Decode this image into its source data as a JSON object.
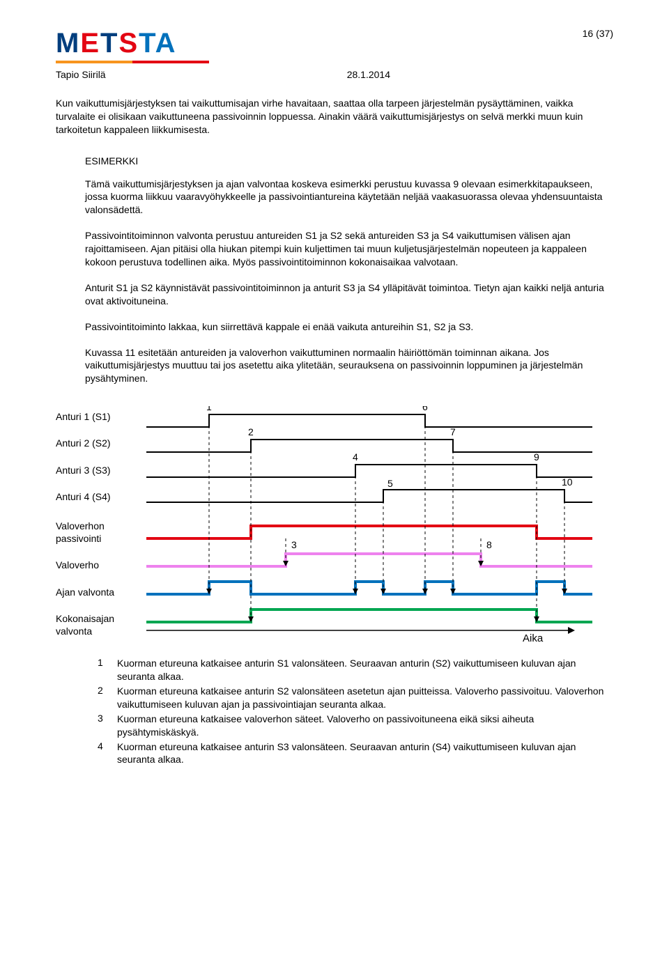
{
  "pagenum": "16 (37)",
  "logo": {
    "text": "METSTA"
  },
  "author": "Tapio Siirilä",
  "date": "28.1.2014",
  "intro_para": "Kun vaikuttumisjärjestyksen tai vaikuttumisajan virhe havaitaan, saattaa olla tarpeen järjestelmän pysäyttäminen, vaikka turvalaite ei olisikaan vaikuttuneena passivoinnin loppuessa. Ainakin väärä vaikuttumisjärjestys on selvä merkki muun kuin tarkoitetun kappaleen liikkumisesta.",
  "example_title": "ESIMERKKI",
  "example_paras": [
    "Tämä vaikuttumisjärjestyksen ja ajan valvontaa koskeva esimerkki perustuu kuvassa 9 olevaan esimerkkitapaukseen, jossa kuorma liikkuu vaaravyöhykkeelle ja passivointiantureina käytetään neljää vaakasuorassa olevaa yhdensuuntaista valonsädettä.",
    "Passivointitoiminnon valvonta perustuu antureiden S1 ja S2 sekä antureiden S3 ja S4 vaikuttumisen välisen ajan rajoittamiseen. Ajan pitäisi olla hiukan pitempi kuin kuljettimen tai muun kuljetusjärjestelmän nopeuteen ja kappaleen kokoon perustuva todellinen aika. Myös passivointitoiminnon kokonaisaikaa valvotaan.",
    "Anturit S1 ja S2 käynnistävät passivointitoiminnon ja anturit S3 ja S4 ylläpitävät toimintoa. Tietyn ajan kaikki neljä anturia ovat aktivoituneina.",
    "Passivointitoiminto lakkaa, kun siirrettävä kappale ei enää vaikuta antureihin S1, S2 ja S3.",
    "Kuvassa 11 esitetään antureiden ja valoverhon vaikuttuminen normaalin häiriöttömän toiminnan aikana. Jos vaikuttumisjärjestys muuttuu tai jos asetettu aika ylitetään, seurauksena on passivoinnin loppuminen ja järjestelmän pysähtyminen."
  ],
  "diagram": {
    "labels": [
      "Anturi 1 (S1)",
      "Anturi 2 (S2)",
      "Anturi 3 (S3)",
      "Anturi 4 (S4)",
      "Valoverhon passivointi",
      "Valoverho",
      "Ajan valvonta",
      "Kokonaisajan valvonta"
    ],
    "time_axis": "Aika",
    "numbers": [
      "1",
      "2",
      "3",
      "4",
      "5",
      "6",
      "7",
      "8",
      "9",
      "10"
    ],
    "colors": {
      "signal": "#000000",
      "passivointi": "#e30613",
      "valoverho": "#ee82ee",
      "ajan": "#0071bc",
      "kokonais": "#00a651",
      "dash": "#000000"
    },
    "linewidth_thin": 2,
    "linewidth_thick": 4,
    "label_gaps": [
      0,
      36,
      36,
      36,
      36,
      48,
      40,
      36,
      36
    ]
  },
  "legend": [
    {
      "n": "1",
      "t": "Kuorman etureuna katkaisee anturin S1 valonsäteen. Seuraavan anturin (S2) vaikuttumiseen kuluvan ajan seuranta alkaa."
    },
    {
      "n": "2",
      "t": "Kuorman etureuna katkaisee anturin S2 valonsäteen asetetun ajan puitteissa. Valoverho passivoituu. Valoverhon vaikuttumiseen kuluvan ajan ja passivointiajan seuranta alkaa."
    },
    {
      "n": "3",
      "t": "Kuorman etureuna katkaisee valoverhon säteet. Valoverho on passivoituneena eikä siksi aiheuta pysähtymiskäskyä."
    },
    {
      "n": "4",
      "t": "Kuorman etureuna katkaisee anturin S3 valonsäteen. Seuraavan anturin (S4) vaikuttumiseen kuluvan ajan seuranta alkaa."
    }
  ]
}
